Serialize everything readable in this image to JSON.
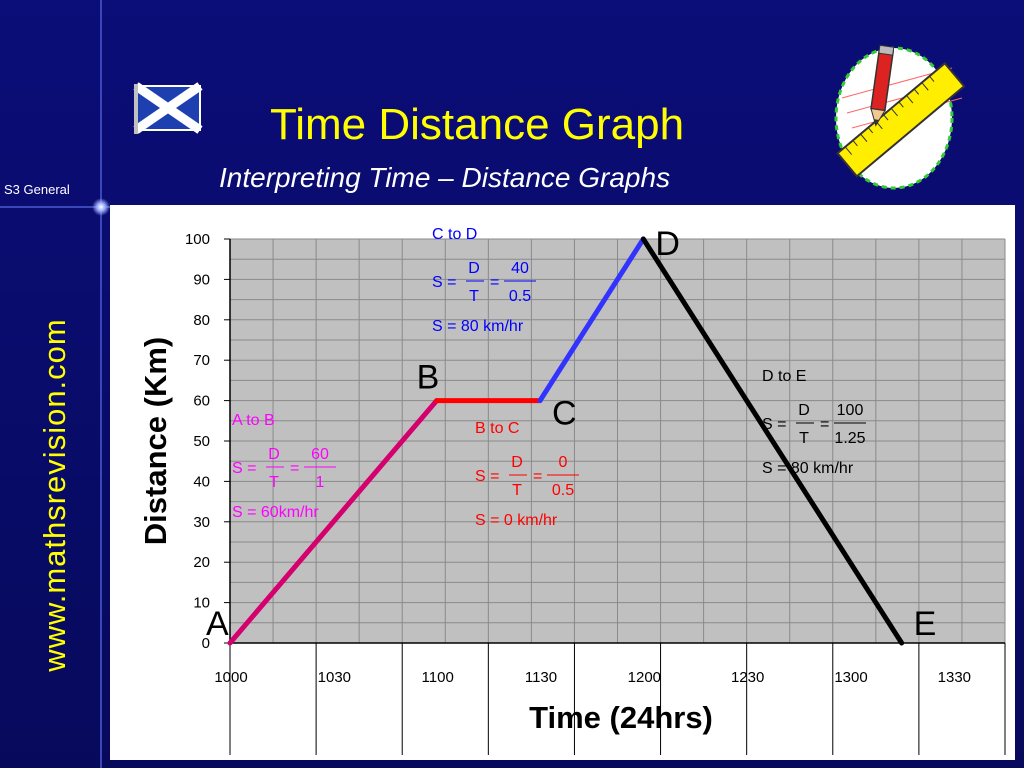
{
  "slide": {
    "title": "Time Distance Graph",
    "subtitle": "Interpreting Time – Distance Graphs",
    "side_label": "S3 General",
    "website": "www.mathsrevision.com",
    "flag_icon": "saltire-flag-icon",
    "clipart_icon": "pencil-ruler-icon"
  },
  "chart_data": {
    "type": "line",
    "x_label": "Time   (24hrs)",
    "y_label": "Distance   (Km)",
    "y_ticks": [
      "0",
      "10",
      "20",
      "30",
      "40",
      "50",
      "60",
      "70",
      "80",
      "90",
      "100"
    ],
    "x_ticks": [
      "1000",
      "1030",
      "1100",
      "1130",
      "1200",
      "1230",
      "1300",
      "1330"
    ],
    "ylim": [
      0,
      100
    ],
    "grid": true,
    "series": [
      {
        "from": "A",
        "to": "B",
        "color": "#d4006e",
        "points": [
          [
            1000,
            0
          ],
          [
            1100,
            60
          ]
        ]
      },
      {
        "from": "B",
        "to": "C",
        "color": "#ff0000",
        "points": [
          [
            1100,
            60
          ],
          [
            1130,
            60
          ]
        ]
      },
      {
        "from": "C",
        "to": "D",
        "color": "#3333ff",
        "points": [
          [
            1130,
            60
          ],
          [
            1200,
            100
          ]
        ]
      },
      {
        "from": "D",
        "to": "E",
        "color": "#000000",
        "points": [
          [
            1200,
            100
          ],
          [
            1315,
            0
          ]
        ]
      }
    ],
    "points": [
      {
        "label": "A",
        "x": 1000,
        "y": 0
      },
      {
        "label": "B",
        "x": 1100,
        "y": 60
      },
      {
        "label": "C",
        "x": 1130,
        "y": 60
      },
      {
        "label": "D",
        "x": 1200,
        "y": 100
      },
      {
        "label": "E",
        "x": 1315,
        "y": 0
      }
    ],
    "annotations": [
      {
        "color": "#ff00ff",
        "heading": "A to  B",
        "s_prefix": "S =",
        "num1": "D",
        "den1": "T",
        "eq": "=",
        "num2": "60",
        "den2": "1",
        "result": "S = 60km/hr"
      },
      {
        "color": "#ff0000",
        "heading": "B to  C",
        "s_prefix": "S =",
        "num1": "D",
        "den1": "T",
        "eq": "=",
        "num2": "0",
        "den2": "0.5",
        "result": "S = 0 km/hr"
      },
      {
        "color": "#0000ff",
        "heading": "C to  D",
        "s_prefix": "S =",
        "num1": "D",
        "den1": "T",
        "eq": "=",
        "num2": "40",
        "den2": "0.5",
        "result": "S = 80 km/hr"
      },
      {
        "color": "#000000",
        "heading": "D to  E",
        "s_prefix": "S =",
        "num1": "D",
        "den1": "T",
        "eq": "=",
        "num2": "100",
        "den2": "1.25",
        "result": "S = 80 km/hr"
      }
    ]
  }
}
